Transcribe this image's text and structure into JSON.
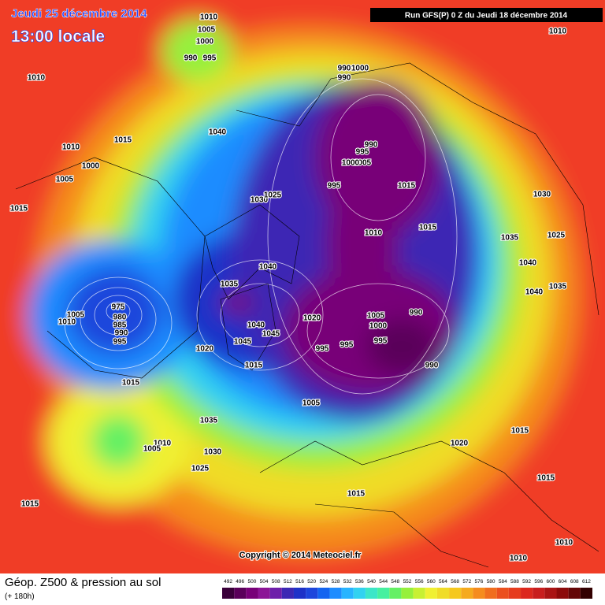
{
  "header": {
    "date": "Jeudi 25 décembre 2014",
    "time": "13:00 locale",
    "run": "Run GFS(P) 0 Z du Jeudi 18 décembre 2014"
  },
  "copyright": "Copyright © 2014 Meteociel.fr",
  "footer": {
    "title": "Géop. Z500 & pression au sol",
    "lead": "(+ 180h)"
  },
  "legend": {
    "labels": [
      "492",
      "496",
      "500",
      "504",
      "508",
      "512",
      "516",
      "520",
      "524",
      "528",
      "532",
      "536",
      "540",
      "544",
      "548",
      "552",
      "556",
      "560",
      "564",
      "568",
      "572",
      "576",
      "580",
      "584",
      "588",
      "592",
      "596",
      "600",
      "604",
      "608",
      "612"
    ],
    "colors": [
      "#3a003a",
      "#5a005a",
      "#780078",
      "#8c1496",
      "#6e1eaa",
      "#3c28b4",
      "#1e32c8",
      "#1e46dc",
      "#1464f0",
      "#1e8cff",
      "#28b4ff",
      "#32d2f0",
      "#3ce6c8",
      "#46f0a0",
      "#64f064",
      "#96f03c",
      "#c8f032",
      "#f0f032",
      "#f0dc28",
      "#f5c81e",
      "#f5aa1e",
      "#f58c1e",
      "#f06e1e",
      "#eb501e",
      "#e63c1e",
      "#dc281e",
      "#c81e1e",
      "#aa1414",
      "#8c0a0a",
      "#640505",
      "#320000"
    ]
  },
  "pressure_labels": [
    "1010",
    "1005",
    "1000",
    "990",
    "995",
    "1010",
    "1040",
    "1010",
    "1015",
    "1000",
    "1005",
    "1015",
    "1030",
    "1025",
    "1040",
    "1035",
    "975",
    "1005",
    "1010",
    "980",
    "985",
    "990",
    "995",
    "1020",
    "1040",
    "1045",
    "1045",
    "1015",
    "1015",
    "1035",
    "1010",
    "1005",
    "1030",
    "1025",
    "1015",
    "1000",
    "990",
    "990",
    "990",
    "995",
    "1005",
    "1000",
    "995",
    "1015",
    "1010",
    "1015",
    "1020",
    "1005",
    "1000",
    "990",
    "995",
    "995",
    "995",
    "990",
    "1005",
    "1015",
    "1030",
    "1035",
    "1025",
    "1040",
    "1040",
    "1035",
    "1015",
    "1020",
    "1015",
    "1010",
    "1010",
    "1010"
  ]
}
